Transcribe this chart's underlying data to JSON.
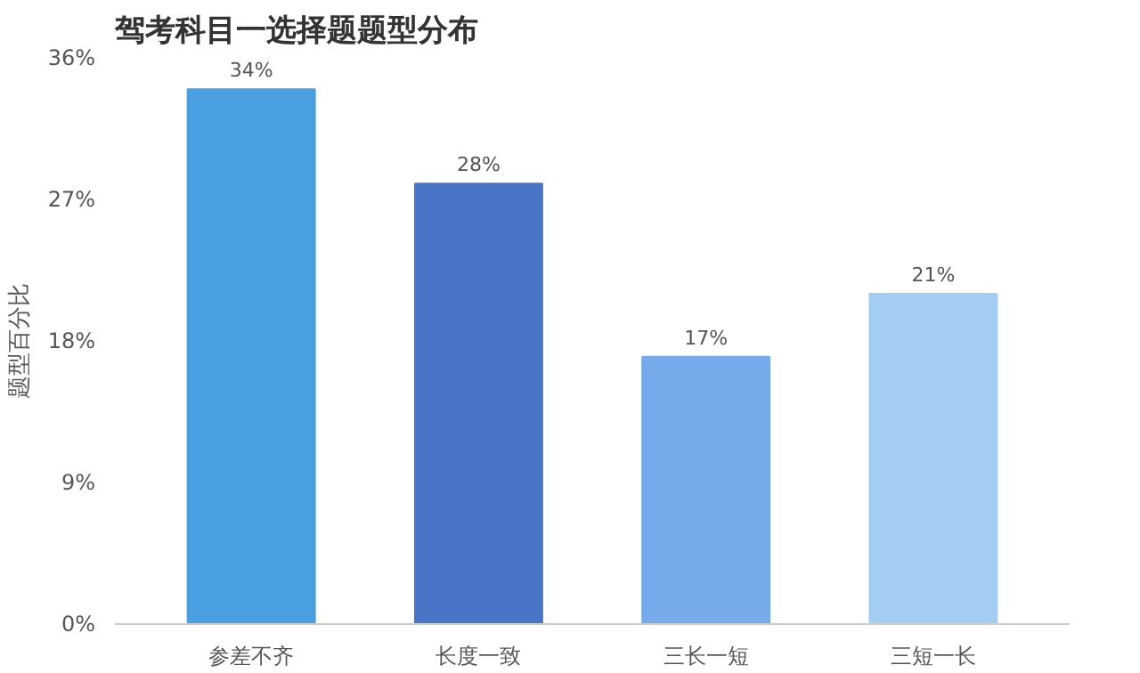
{
  "chart_data": {
    "type": "bar",
    "title": "驾考科目一选择题题型分布",
    "ylabel": "题型百分比",
    "categories": [
      "参差不齐",
      "长度一致",
      "三长一短",
      "三短一长"
    ],
    "values": [
      34,
      28,
      17,
      21
    ],
    "colors": [
      "#4a9fe0",
      "#4a74c6",
      "#77aaea",
      "#a3cdf3"
    ],
    "value_labels": [
      "34%",
      "28%",
      "17%",
      "21%"
    ],
    "ylim": [
      0,
      36
    ],
    "yticks": [
      {
        "value": 0,
        "label": "0%"
      },
      {
        "value": 9,
        "label": "9%"
      },
      {
        "value": 18,
        "label": "18%"
      },
      {
        "value": 27,
        "label": "27%"
      },
      {
        "value": 36,
        "label": "36%"
      }
    ],
    "grid": false
  }
}
